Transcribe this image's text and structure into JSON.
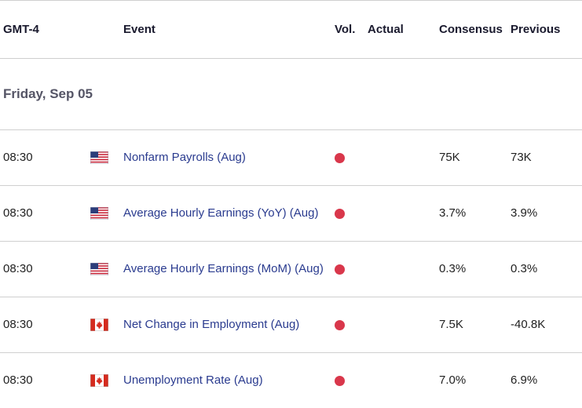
{
  "header": {
    "timezone": "GMT-4",
    "event": "Event",
    "vol": "Vol.",
    "actual": "Actual",
    "consensus": "Consensus",
    "previous": "Previous"
  },
  "day": {
    "label": "Friday, Sep 05"
  },
  "colors": {
    "vol_high": "#d9374b",
    "event_text": "#2a3b8f"
  },
  "rows": [
    {
      "time": "08:30",
      "country": "us-flag-icon",
      "event": "Nonfarm Payrolls (Aug)",
      "actual": "",
      "consensus": "75K",
      "previous": "73K"
    },
    {
      "time": "08:30",
      "country": "us-flag-icon",
      "event": "Average Hourly Earnings (YoY) (Aug)",
      "actual": "",
      "consensus": "3.7%",
      "previous": "3.9%"
    },
    {
      "time": "08:30",
      "country": "us-flag-icon",
      "event": "Average Hourly Earnings (MoM) (Aug)",
      "actual": "",
      "consensus": "0.3%",
      "previous": "0.3%"
    },
    {
      "time": "08:30",
      "country": "canada-flag-icon",
      "event": "Net Change in Employment (Aug)",
      "actual": "",
      "consensus": "7.5K",
      "previous": "-40.8K"
    },
    {
      "time": "08:30",
      "country": "canada-flag-icon",
      "event": "Unemployment Rate (Aug)",
      "actual": "",
      "consensus": "7.0%",
      "previous": "6.9%"
    }
  ]
}
